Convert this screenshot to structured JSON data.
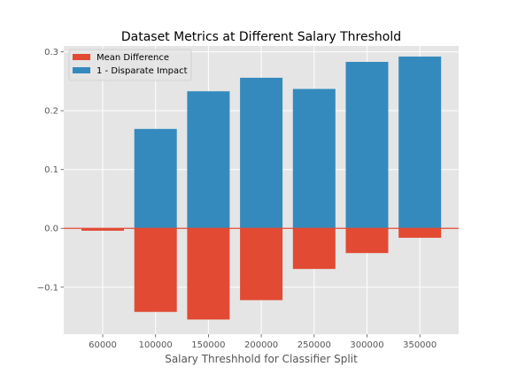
{
  "chart_data": {
    "type": "bar",
    "title": "Dataset Metrics at Different Salary Threshold",
    "xlabel": "Salary Threshhold for Classifier Split",
    "ylabel": "",
    "x": [
      60000,
      100000,
      150000,
      200000,
      250000,
      300000,
      350000
    ],
    "xticks": [
      "60000",
      "100000",
      "150000",
      "200000",
      "250000",
      "300000",
      "350000"
    ],
    "ylim": [
      -0.18,
      0.31
    ],
    "yticks": [
      -0.1,
      0.0,
      0.1,
      0.2,
      0.3
    ],
    "ytick_labels": [
      "−0.1",
      "0.0",
      "0.1",
      "0.2",
      "0.3"
    ],
    "grid": true,
    "legend_position": "top-left",
    "reference_line_y": 0.0,
    "series": [
      {
        "name": "Mean Difference",
        "color": "#E24A33",
        "values": [
          -0.004,
          -0.142,
          -0.155,
          -0.122,
          -0.069,
          -0.042,
          -0.016
        ]
      },
      {
        "name": "1 - Disparate Impact",
        "color": "#348ABD",
        "values": [
          0.0,
          0.169,
          0.233,
          0.256,
          0.237,
          0.283,
          0.292
        ]
      }
    ]
  }
}
